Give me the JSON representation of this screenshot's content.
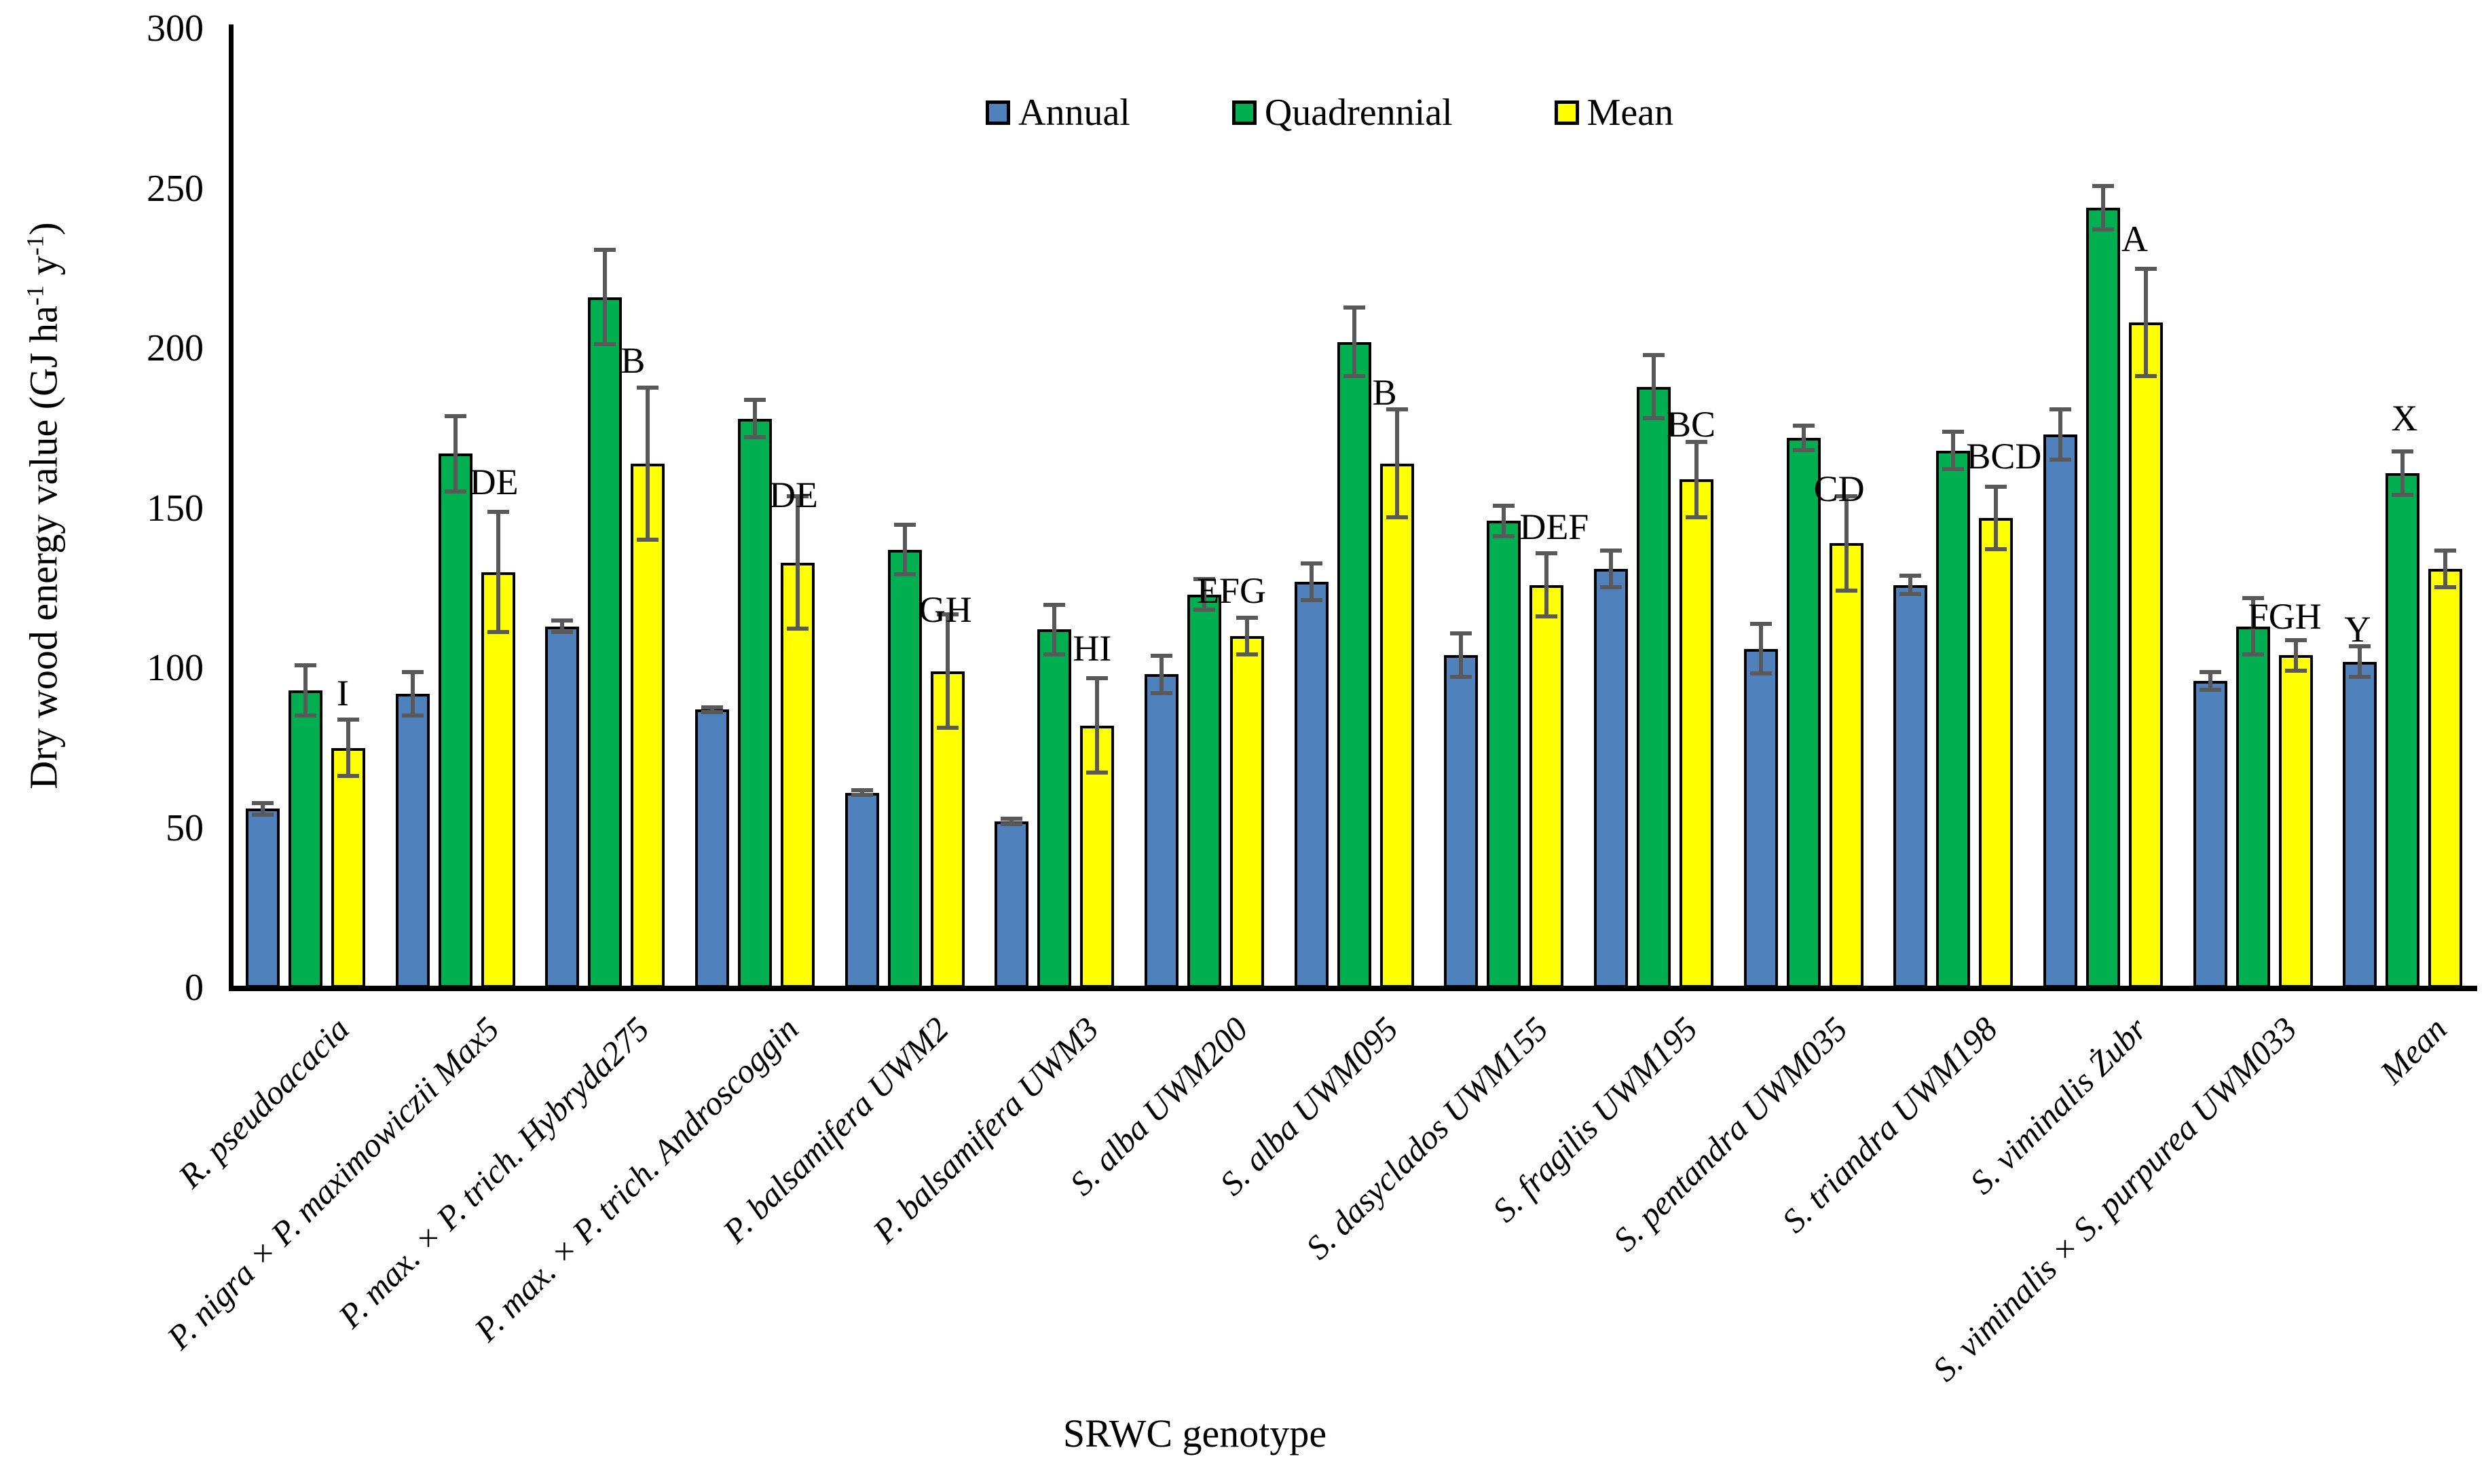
{
  "figure": {
    "x_title": "SRWC genotype",
    "y_title_parts": {
      "pre": "Dry wood energy value (GJ ha",
      "sup1": "-1",
      "mid": " y",
      "sup2": "-1",
      "post": ")"
    }
  },
  "legend": {
    "items": [
      {
        "label": "Annual",
        "color": "#4F81BD"
      },
      {
        "label": "Quadrennial",
        "color": "#00B050"
      },
      {
        "label": "Mean",
        "color": "#FFFF00"
      }
    ]
  },
  "chart_data": {
    "type": "bar",
    "title": "",
    "xlabel": "SRWC genotype",
    "ylabel": "Dry wood energy value (GJ ha-1 y-1)",
    "ylim": [
      0,
      300
    ],
    "ytick_step": 50,
    "ytick_labels": [
      "0",
      "50",
      "100",
      "150",
      "200",
      "250",
      "300"
    ],
    "grid": false,
    "legend_position": "top-center",
    "categories": [
      "R. pseudoacacia",
      "P. nigra × P. maximowiczii Max5",
      "P. max. × P. trich. Hybryda275",
      "P. max. × P. trich. Androscoggin",
      "P. balsamifera UWM2",
      "P. balsamifera UWM3",
      "S. alba UWM200",
      "S. alba UWM095",
      "S. dasyclados UWM155",
      "S. fragilis UWM195",
      "S. pentandra UWM035",
      "S. triandra UWM198",
      "S. viminalis Żubr",
      "S. viminalis × S. purpurea UWM033",
      "Mean"
    ],
    "series": [
      {
        "name": "Annual",
        "color": "#4F81BD",
        "values": [
          56,
          92,
          113,
          87,
          61,
          52,
          98,
          127,
          104,
          131,
          106,
          126,
          173,
          96,
          102
        ],
        "errors": [
          2,
          7,
          2,
          1,
          1,
          1,
          6,
          6,
          7,
          6,
          8,
          3,
          8,
          3,
          5
        ]
      },
      {
        "name": "Quadrennial",
        "color": "#00B050",
        "values": [
          93,
          167,
          216,
          178,
          137,
          112,
          123,
          202,
          146,
          188,
          172,
          168,
          244,
          113,
          161
        ],
        "errors": [
          8,
          12,
          15,
          6,
          8,
          8,
          5,
          11,
          5,
          10,
          4,
          6,
          7,
          9,
          7
        ]
      },
      {
        "name": "Mean",
        "color": "#FFFF00",
        "values": [
          75,
          130,
          164,
          133,
          99,
          82,
          110,
          164,
          126,
          159,
          139,
          147,
          208,
          104,
          131
        ],
        "errors": [
          9,
          19,
          24,
          21,
          18,
          15,
          6,
          17,
          10,
          12,
          15,
          10,
          17,
          5,
          6
        ]
      }
    ],
    "significance_letters": [
      {
        "group": 0,
        "text": "I",
        "value": 86,
        "series": "Mean",
        "dx": 8
      },
      {
        "group": 1,
        "text": "DE",
        "value": 152,
        "series": "Quadrennial",
        "dx": 46
      },
      {
        "group": 2,
        "text": "B",
        "value": 190,
        "series": "Quadrennial",
        "dx": 48
      },
      {
        "group": 3,
        "text": "DE",
        "value": 148,
        "series": "Quadrennial",
        "dx": 46
      },
      {
        "group": 4,
        "text": "GH",
        "value": 112,
        "series": "Quadrennial",
        "dx": 46
      },
      {
        "group": 5,
        "text": "HI",
        "value": 100,
        "series": "Quadrennial",
        "dx": 52
      },
      {
        "group": 6,
        "text": "EFG",
        "value": 118,
        "series": "Quadrennial",
        "dx": 14
      },
      {
        "group": 7,
        "text": "B",
        "value": 180,
        "series": "Quadrennial",
        "dx": 52
      },
      {
        "group": 8,
        "text": "DEF",
        "value": 138,
        "series": "Quadrennial",
        "dx": 48
      },
      {
        "group": 9,
        "text": "BC",
        "value": 170,
        "series": "Quadrennial",
        "dx": 44
      },
      {
        "group": 10,
        "text": "CD",
        "value": 150,
        "series": "Quadrennial",
        "dx": 40
      },
      {
        "group": 11,
        "text": "BCD",
        "value": 160,
        "series": "Quadrennial",
        "dx": 44
      },
      {
        "group": 12,
        "text": "A",
        "value": 228,
        "series": "Quadrennial",
        "dx": 52
      },
      {
        "group": 13,
        "text": "FGH",
        "value": 110,
        "series": "Quadrennial",
        "dx": 18
      },
      {
        "group": 14,
        "text": "Y",
        "value": 106,
        "series": "Annual",
        "dx": 2
      },
      {
        "group": 14,
        "text": "X",
        "value": 172,
        "series": "Quadrennial",
        "dx": 8
      }
    ]
  },
  "geometry_note": "y axis 0-300, no gridlines, error bars dark gray with caps"
}
